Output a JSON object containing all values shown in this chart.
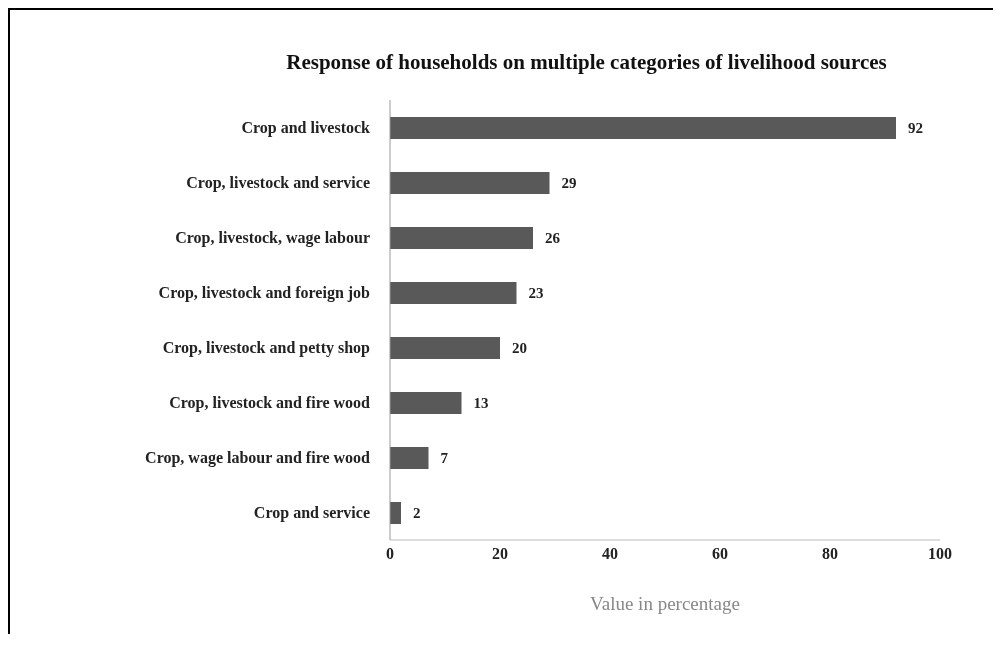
{
  "chart_data": {
    "type": "bar",
    "orientation": "horizontal",
    "title": "Response of households on multiple categories of livelihood sources",
    "xlabel": "Value in percentage",
    "categories": [
      "Crop and livestock",
      "Crop,  livestock and service",
      "Crop, livestock, wage labour",
      "Crop, livestock and foreign job",
      "Crop, livestock and petty shop",
      "Crop, livestock and fire wood",
      "Crop, wage labour and fire wood",
      "Crop and service"
    ],
    "values": [
      92,
      29,
      26,
      23,
      20,
      13,
      7,
      2
    ],
    "color": "#595959",
    "xlim": [
      0,
      100
    ],
    "xticks": [
      0,
      20,
      40,
      60,
      80,
      100
    ],
    "data_labels": true,
    "grid": false,
    "legend": false
  }
}
